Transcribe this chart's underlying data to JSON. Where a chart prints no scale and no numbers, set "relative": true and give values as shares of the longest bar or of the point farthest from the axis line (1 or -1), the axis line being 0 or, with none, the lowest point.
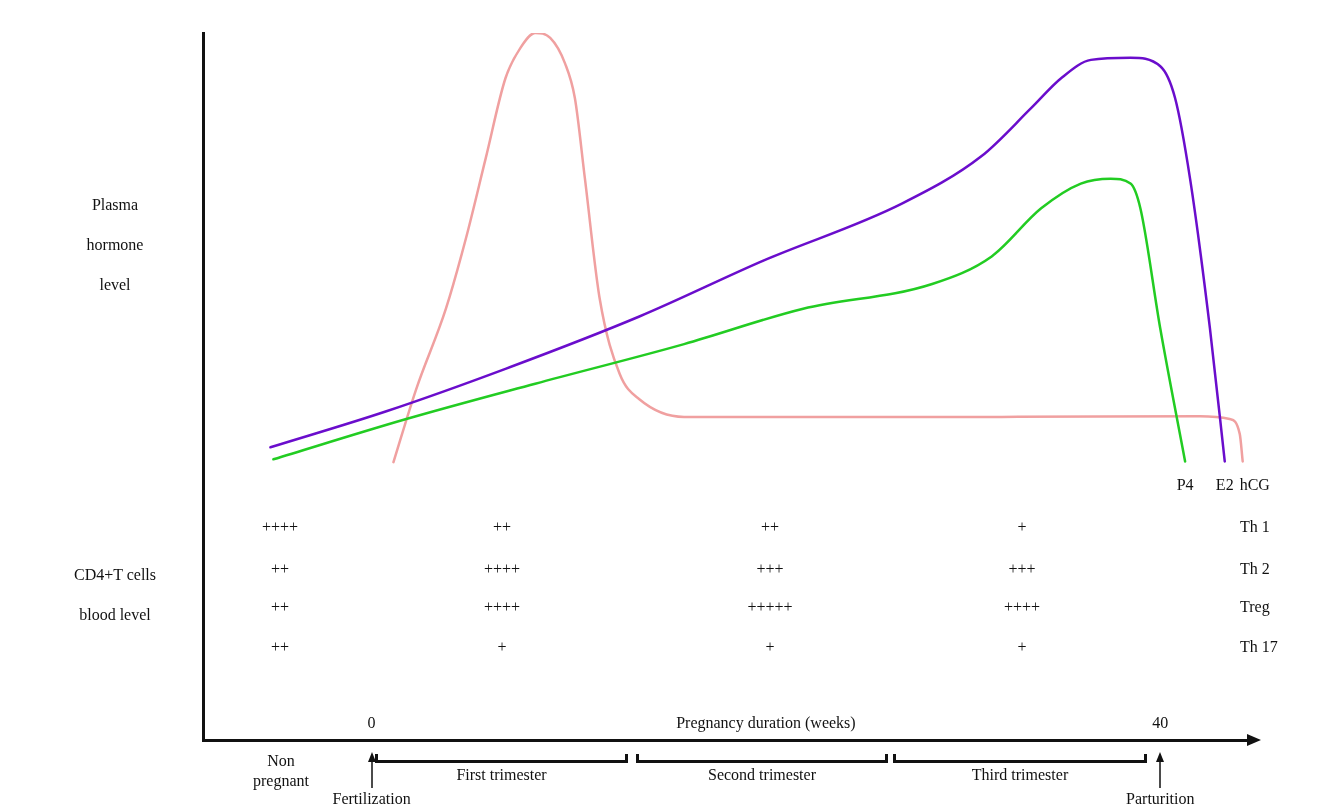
{
  "chart_data": {
    "type": "line",
    "relative": true,
    "ylabel": "Plasma hormone level",
    "xlabel": "Pregnancy duration (weeks)",
    "xlim": [
      -8.55,
      44.5
    ],
    "xticks": [
      0,
      40
    ],
    "grid": false,
    "legend": false,
    "marker": "none",
    "line_style": "solid",
    "series": [
      {
        "name": "P4",
        "color": "#22cc22",
        "x": [
          -4.98,
          1.76,
          8.3,
          15.85,
          21.89,
          28.43,
          31.45,
          33.96,
          35.97,
          37.48,
          38.49,
          38.99,
          40.0,
          41.26
        ],
        "values": [
          0.397,
          0.454,
          0.504,
          0.56,
          0.61,
          0.645,
          0.684,
          0.752,
          0.787,
          0.794,
          0.787,
          0.752,
          0.582,
          0.394
        ]
      },
      {
        "name": "E2",
        "color": "#6a0dcc",
        "x": [
          -5.13,
          0.75,
          6.79,
          13.58,
          19.87,
          26.92,
          30.94,
          33.46,
          34.97,
          36.48,
          38.49,
          40.0,
          40.75,
          41.51,
          42.52,
          43.27
        ],
        "values": [
          0.414,
          0.465,
          0.525,
          0.599,
          0.678,
          0.759,
          0.826,
          0.894,
          0.936,
          0.962,
          0.965,
          0.953,
          0.908,
          0.794,
          0.582,
          0.394
        ]
      },
      {
        "name": "hCG",
        "color": "#f0a0a0",
        "x": [
          1.11,
          2.26,
          3.77,
          4.78,
          5.79,
          6.79,
          7.55,
          8.3,
          9.06,
          9.81,
          10.31,
          10.82,
          11.57,
          12.58,
          13.58,
          15.85,
          21.89,
          31.95,
          42.01,
          43.52,
          44.03,
          44.18
        ],
        "values": [
          0.393,
          0.496,
          0.61,
          0.709,
          0.823,
          0.936,
          0.979,
          1.0,
          0.993,
          0.957,
          0.908,
          0.794,
          0.624,
          0.518,
          0.482,
          0.457,
          0.457,
          0.457,
          0.458,
          0.454,
          0.433,
          0.394
        ]
      }
    ],
    "annotations": [
      "Non pregnant",
      "CD4+T cells blood level",
      "++++",
      "++",
      "++",
      "+",
      "Th 1",
      "++",
      "++++",
      "+++",
      "+++",
      "Th 2",
      "++",
      "++++",
      "+++++",
      "++++",
      "Treg",
      "++",
      "+",
      "+",
      "+",
      "Th 17",
      "First trimester",
      "Second trimester",
      "Third trimester",
      "Fertilization",
      "Parturition"
    ]
  }
}
